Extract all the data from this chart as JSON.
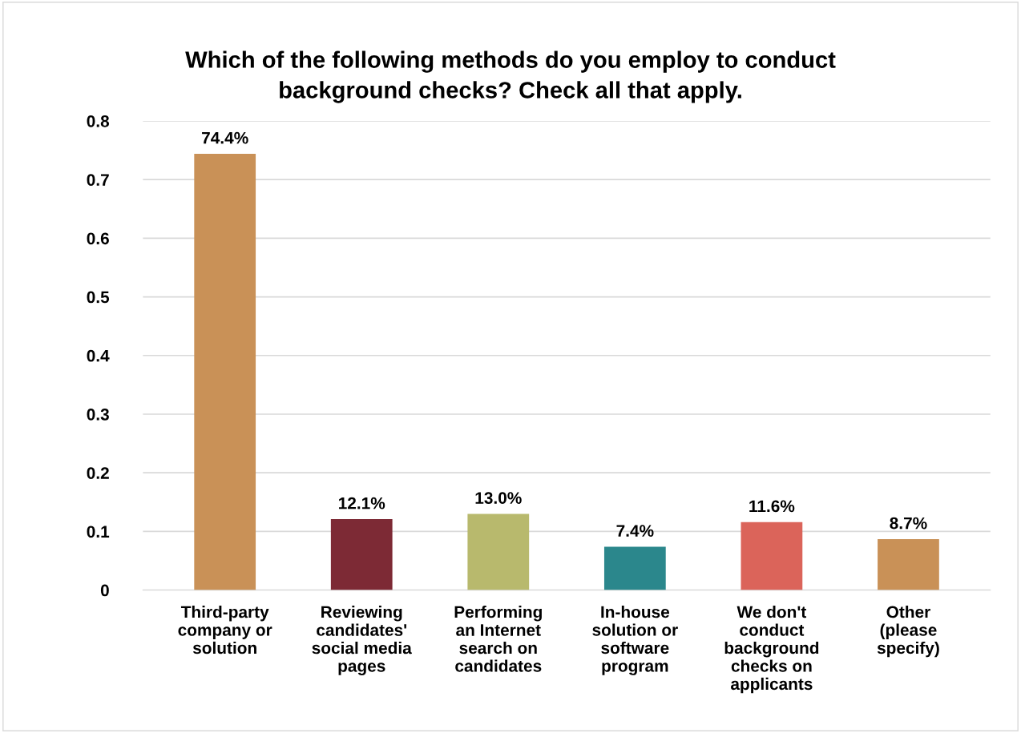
{
  "chart_data": {
    "type": "bar",
    "title": "Which of the following methods do you employ to conduct\nbackground checks? Check all that apply.",
    "categories": [
      "Third-party\ncompany or\nsolution",
      "Reviewing\ncandidates'\nsocial media\npages",
      "Performing\nan Internet\nsearch on\ncandidates",
      "In-house\nsolution or\nsoftware\nprogram",
      "We don't\nconduct\nbackground\nchecks on\napplicants",
      "Other\n(please\nspecify)"
    ],
    "values": [
      0.744,
      0.121,
      0.13,
      0.074,
      0.116,
      0.087
    ],
    "value_labels": [
      "74.4%",
      "12.1%",
      "13.0%",
      "7.4%",
      "11.6%",
      "8.7%"
    ],
    "colors": [
      "#c99157",
      "#7d2a35",
      "#b8b96d",
      "#2b878c",
      "#db645a",
      "#c99157"
    ],
    "ylim": [
      0,
      0.8
    ],
    "yticks": [
      {
        "value": 0,
        "label": "0"
      },
      0.1,
      0.2,
      0.3,
      0.4,
      0.5,
      0.6,
      0.7,
      0.8
    ],
    "grid": "y"
  }
}
